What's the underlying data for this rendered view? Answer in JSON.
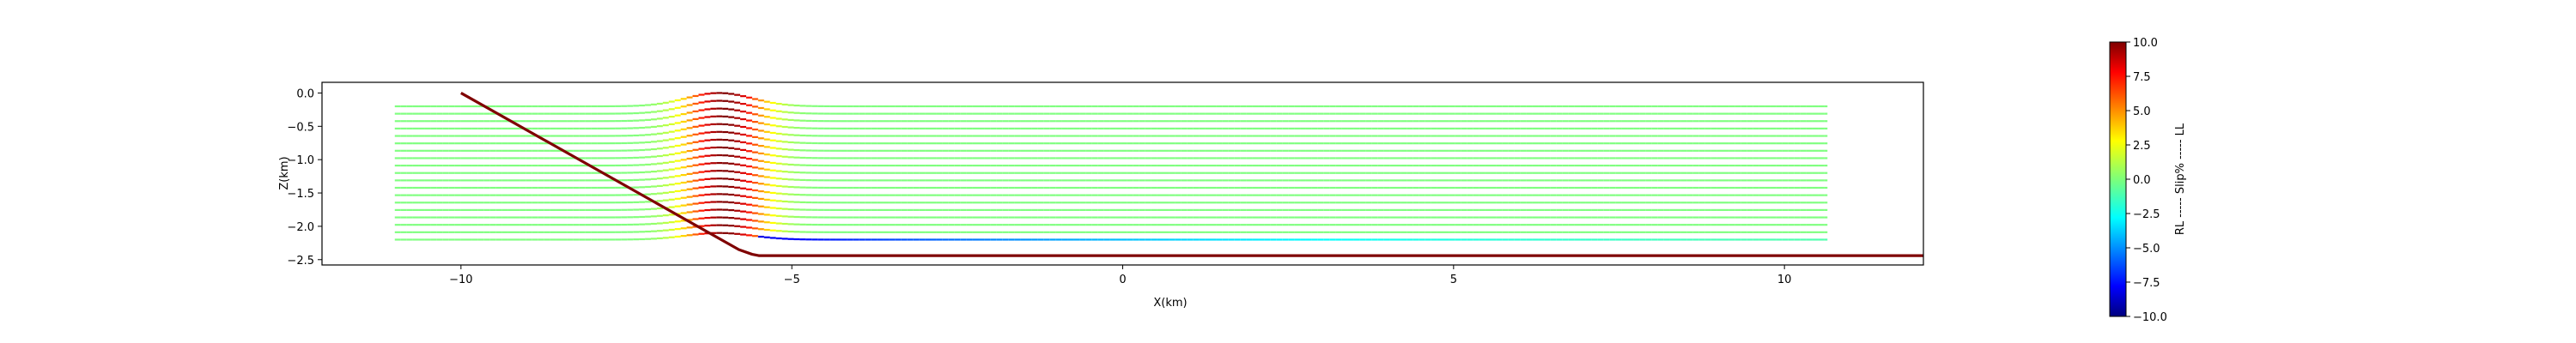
{
  "chart_data": {
    "type": "line",
    "title": "",
    "xlabel": "X(km)",
    "ylabel": "Z(km)",
    "xlim": [
      -12.1,
      12.1
    ],
    "ylim": [
      -2.58,
      0.16
    ],
    "xticks": [
      -10,
      -5,
      0,
      5,
      10
    ],
    "xtick_labels": [
      "−10",
      "−5",
      "0",
      "5",
      "10"
    ],
    "yticks": [
      0.0,
      -0.5,
      -1.0,
      -1.5,
      -2.0,
      -2.5
    ],
    "ytick_labels": [
      "0.0",
      "−0.5",
      "−1.0",
      "−1.5",
      "−2.0",
      "−2.5"
    ],
    "grid": false,
    "fault_color": "#7f0000",
    "fault": {
      "x": [
        -10.0,
        -5.8,
        -5.6,
        -5.5,
        12.1
      ],
      "y": [
        0.0,
        -2.35,
        -2.42,
        -2.44,
        -2.44
      ]
    },
    "layers": {
      "count": 19,
      "x_start": -11.0,
      "x_end": 10.65,
      "y_top": -0.2,
      "y_bottom": -2.2,
      "base_slip_percent": 0.0
    },
    "fold_zone": {
      "x_center": -6.0,
      "width_km": 0.9,
      "peak_slip_percent": 10.0
    },
    "basal_zone": {
      "x_start": -5.5,
      "x_end": 10.65,
      "y": -2.2,
      "min_slip_percent": -8.0
    },
    "colorbar": {
      "label": "RL ----- Slip% ----- LL",
      "min": -10.0,
      "max": 10.0,
      "ticks": [
        10.0,
        7.5,
        5.0,
        2.5,
        0.0,
        -2.5,
        -5.0,
        -7.5,
        -10.0
      ],
      "tick_labels": [
        "10.0",
        "7.5",
        "5.0",
        "2.5",
        "0.0",
        "−2.5",
        "−5.0",
        "−7.5",
        "−10.0"
      ],
      "colormap": "jet"
    }
  }
}
